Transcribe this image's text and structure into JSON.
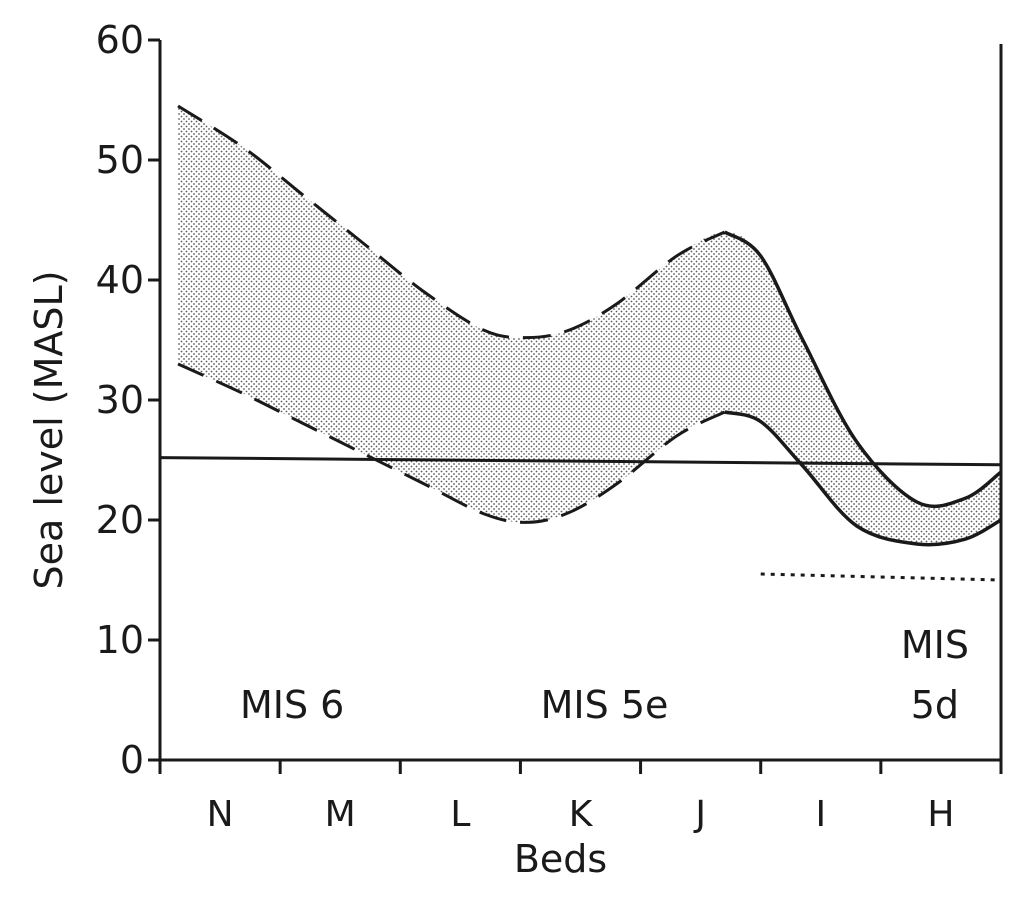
{
  "chart_data": {
    "type": "area",
    "xlabel": "Beds",
    "ylabel": "Sea level (MASL)",
    "categories": [
      "N",
      "M",
      "L",
      "K",
      "J",
      "I",
      "H"
    ],
    "yticks": [
      0,
      10,
      20,
      30,
      40,
      50,
      60
    ],
    "ylim": [
      0,
      60
    ],
    "grid": false,
    "annotations": [
      {
        "label": "MIS 6",
        "x": 1.1,
        "y": 3.5
      },
      {
        "label": "MIS 5e",
        "x": 3.7,
        "y": 3.5
      },
      {
        "label": "MIS",
        "x": 6.45,
        "y": 8.5
      },
      {
        "label": "5d",
        "x": 6.45,
        "y": 3.5
      }
    ],
    "series": [
      {
        "role": "upper-bound",
        "style": "dashed-then-solid",
        "x": [
          0.15,
          0.7,
          1.2,
          1.7,
          2.2,
          2.7,
          3.05,
          3.4,
          3.8,
          4.3,
          4.7,
          5.0,
          5.35,
          5.8,
          6.3,
          6.7,
          7.0
        ],
        "y": [
          54.5,
          51,
          47,
          43,
          39,
          35.8,
          35.2,
          35.8,
          38,
          42,
          44,
          42,
          35,
          26.5,
          21.5,
          21.8,
          24
        ],
        "solid_from_x": 4.6
      },
      {
        "role": "lower-bound",
        "style": "dashed-then-solid",
        "x": [
          0.15,
          0.7,
          1.2,
          1.7,
          2.2,
          2.7,
          3.05,
          3.4,
          3.8,
          4.3,
          4.7,
          5.0,
          5.35,
          5.8,
          6.3,
          6.7,
          7.0
        ],
        "y": [
          33,
          30.5,
          28,
          25.5,
          23,
          20.5,
          19.8,
          20.6,
          23,
          27,
          29,
          28.2,
          24.5,
          19.5,
          18,
          18.4,
          20
        ],
        "solid_from_x": 4.7
      },
      {
        "role": "reference-level",
        "style": "solid",
        "x": [
          0,
          7.0
        ],
        "y": [
          25.2,
          24.6
        ]
      },
      {
        "role": "lower-marker",
        "style": "dotted",
        "x": [
          5.0,
          7.0
        ],
        "y": [
          15.5,
          15.0
        ]
      }
    ],
    "colors": {
      "ink": "#1a1a1a",
      "fill_dots": "#5a5a5a"
    }
  }
}
